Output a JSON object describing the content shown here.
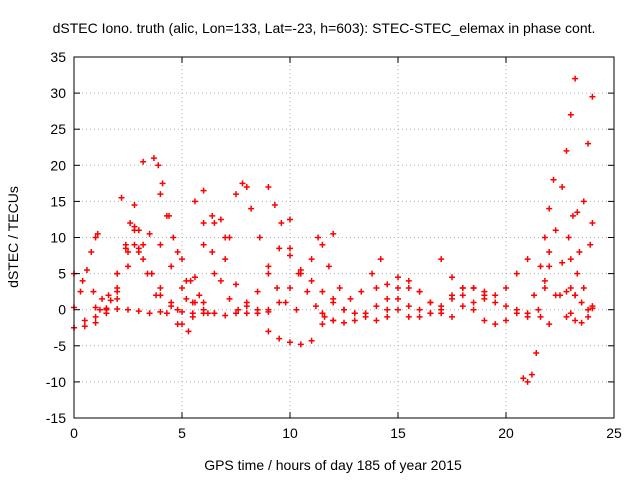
{
  "chart_data": {
    "type": "scatter",
    "title": "dSTEC Iono. truth (alic, Lon=133, Lat=-23, h=603): STEC-STEC_elemax in phase cont.",
    "xlabel": "GPS time / hours of day 185 of year 2015",
    "ylabel": "dSTEC  / TECUs",
    "xlim": [
      0,
      25
    ],
    "ylim": [
      -15,
      35
    ],
    "xticks": [
      0,
      5,
      10,
      15,
      20,
      25
    ],
    "yticks": [
      -15,
      -10,
      -5,
      0,
      5,
      10,
      15,
      20,
      25,
      30,
      35
    ],
    "grid": true,
    "marker": "+",
    "color": "#ff0000",
    "series": [
      {
        "x": [
          0.0,
          0.3,
          0.6,
          0.8,
          1.0,
          1.1
        ],
        "y": [
          0.3,
          2.5,
          5.5,
          8.0,
          10.0,
          10.5
        ]
      },
      {
        "x": [
          0.0,
          0.5,
          1.0,
          1.5,
          2.0,
          2.5,
          2.8
        ],
        "y": [
          -2.5,
          -2.3,
          -1.8,
          -0.5,
          3.0,
          8.0,
          11.5
        ]
      },
      {
        "x": [
          0.0,
          0.4,
          0.9,
          1.3,
          1.7,
          2.0
        ],
        "y": [
          5.0,
          4.0,
          2.5,
          1.5,
          1.3,
          1.5
        ]
      },
      {
        "x": [
          0.5,
          1.0,
          1.5,
          2.0,
          2.5,
          3.0
        ],
        "y": [
          -1.5,
          -1.0,
          0.0,
          2.5,
          6.0,
          11.0
        ]
      },
      {
        "x": [
          1.0,
          1.5,
          2.0,
          2.5,
          3.0,
          3.5,
          4.0
        ],
        "y": [
          0.3,
          0.2,
          0.1,
          0.0,
          -0.2,
          -0.5,
          -0.3
        ]
      },
      {
        "x": [
          1.2,
          1.6,
          2.0,
          2.4,
          2.8,
          3.2
        ],
        "y": [
          0.0,
          2.0,
          5.0,
          9.0,
          14.5,
          20.5
        ]
      },
      {
        "x": [
          2.0,
          2.4,
          2.8,
          3.2,
          3.6,
          4.0,
          4.5
        ],
        "y": [
          5.0,
          8.5,
          11.0,
          9.0,
          5.0,
          2.0,
          0.5
        ]
      },
      {
        "x": [
          2.2,
          2.6,
          3.0,
          3.4,
          3.8,
          4.3,
          4.8,
          5.3
        ],
        "y": [
          15.5,
          12.0,
          8.0,
          5.0,
          2.0,
          -0.5,
          -2.0,
          -3.0
        ]
      },
      {
        "x": [
          2.8,
          3.2,
          3.6,
          4.0,
          4.5,
          5.0,
          5.5,
          6.2
        ],
        "y": [
          9.0,
          7.0,
          5.0,
          3.0,
          1.0,
          -0.3,
          -0.5,
          -0.5
        ]
      },
      {
        "x": [
          3.0,
          3.5,
          4.0,
          4.5,
          5.0,
          5.5,
          6.0
        ],
        "y": [
          8.5,
          10.5,
          9.0,
          6.0,
          3.0,
          1.0,
          0.0
        ]
      },
      {
        "x": [
          3.7,
          3.9,
          4.1,
          4.4,
          4.8,
          5.2,
          5.6,
          6.0,
          6.5
        ],
        "y": [
          21.0,
          20.0,
          17.5,
          13.0,
          8.0,
          4.0,
          1.0,
          -0.5,
          -0.5
        ]
      },
      {
        "x": [
          4.0,
          4.3,
          4.6,
          5.0,
          5.4,
          5.8
        ],
        "y": [
          16.0,
          13.0,
          10.0,
          7.0,
          4.0,
          2.0
        ]
      },
      {
        "x": [
          4.8,
          5.2,
          5.6,
          6.0,
          6.4,
          6.8,
          7.2
        ],
        "y": [
          0.0,
          1.5,
          4.5,
          9.0,
          13.0,
          12.5,
          10.0
        ]
      },
      {
        "x": [
          5.6,
          6.0,
          6.4,
          6.8,
          7.2,
          7.6,
          8.0
        ],
        "y": [
          15.0,
          12.0,
          8.0,
          4.0,
          1.5,
          0.0,
          -0.5
        ]
      },
      {
        "x": [
          5.0,
          5.5,
          6.0,
          6.5,
          7.0,
          7.5,
          8.0
        ],
        "y": [
          -2.0,
          -1.0,
          1.0,
          5.0,
          10.0,
          16.0,
          17.0
        ]
      },
      {
        "x": [
          6.0,
          6.5,
          7.0,
          7.5,
          8.0,
          8.5,
          9.0
        ],
        "y": [
          16.5,
          12.0,
          7.0,
          3.5,
          1.0,
          0.0,
          -0.3
        ]
      },
      {
        "x": [
          6.5,
          7.0,
          7.5,
          8.0,
          8.5,
          9.0,
          9.5,
          10.0
        ],
        "y": [
          -0.5,
          -0.8,
          -0.5,
          0.5,
          2.5,
          5.0,
          8.5,
          12.5
        ]
      },
      {
        "x": [
          7.8,
          8.2,
          8.6,
          9.0,
          9.4,
          9.8,
          10.3
        ],
        "y": [
          17.5,
          14.0,
          10.0,
          6.0,
          3.0,
          1.0,
          0.0
        ]
      },
      {
        "x": [
          8.5,
          9.0,
          9.5,
          10.0,
          10.5,
          11.0,
          11.5,
          12.0
        ],
        "y": [
          -0.5,
          0.0,
          1.0,
          3.0,
          5.0,
          7.0,
          9.0,
          10.5
        ]
      },
      {
        "x": [
          9.0,
          9.3,
          9.6,
          10.0,
          10.4,
          10.8,
          11.2,
          11.6,
          12.0
        ],
        "y": [
          17.0,
          14.5,
          12.0,
          8.5,
          5.0,
          2.5,
          0.5,
          -1.0,
          -1.5
        ]
      },
      {
        "x": [
          9.0,
          9.5,
          10.0,
          10.5,
          11.0,
          11.5,
          12.0
        ],
        "y": [
          -3.0,
          -4.0,
          -4.5,
          -4.8,
          -4.3,
          -2.0,
          1.5
        ]
      },
      {
        "x": [
          10.0,
          10.5,
          11.0,
          11.5,
          12.0,
          12.5,
          13.0
        ],
        "y": [
          7.5,
          5.5,
          4.0,
          2.5,
          1.0,
          0.0,
          -0.5
        ]
      },
      {
        "x": [
          11.3,
          11.8,
          12.3,
          12.8,
          13.3,
          13.8,
          14.2
        ],
        "y": [
          10.0,
          6.0,
          3.0,
          1.5,
          2.5,
          5.0,
          7.0
        ]
      },
      {
        "x": [
          11.5,
          12.0,
          12.5,
          13.0,
          13.5,
          14.0,
          14.5,
          15.0
        ],
        "y": [
          -0.5,
          -1.5,
          -1.8,
          -1.5,
          -0.5,
          0.5,
          1.5,
          3.0
        ]
      },
      {
        "x": [
          12.5,
          13.0,
          13.5,
          14.0,
          14.5,
          15.0,
          15.5,
          16.0,
          16.5
        ],
        "y": [
          0.0,
          -0.5,
          -1.0,
          -1.5,
          -1.0,
          0.0,
          0.5,
          0.0,
          -0.5
        ]
      },
      {
        "x": [
          14.0,
          14.5,
          15.0,
          15.5,
          16.0,
          16.5,
          17.0
        ],
        "y": [
          3.0,
          3.5,
          4.5,
          4.0,
          2.5,
          1.0,
          0.0
        ]
      },
      {
        "x": [
          14.5,
          15.0,
          15.5,
          16.0,
          16.5,
          17.0,
          17.5
        ],
        "y": [
          0.0,
          1.5,
          3.0,
          2.5,
          1.0,
          -0.5,
          -1.0
        ]
      },
      {
        "x": [
          15.5,
          16.0,
          16.5,
          17.0,
          17.5,
          18.0,
          18.5,
          19.0
        ],
        "y": [
          -1.0,
          -1.0,
          -0.5,
          0.5,
          2.0,
          3.0,
          3.0,
          2.5
        ]
      },
      {
        "x": [
          17.0,
          17.5,
          18.0,
          18.5,
          19.0,
          19.5,
          20.0,
          20.5
        ],
        "y": [
          7.0,
          4.5,
          2.0,
          0.0,
          -1.5,
          -2.0,
          -1.5,
          -0.5
        ]
      },
      {
        "x": [
          17.5,
          18.0,
          18.5,
          19.0,
          19.5,
          20.0,
          20.5,
          21.0
        ],
        "y": [
          1.5,
          3.0,
          3.0,
          2.0,
          1.0,
          0.5,
          0.0,
          -0.5
        ]
      },
      {
        "x": [
          18.0,
          18.5,
          19.0,
          19.5,
          20.0,
          20.5,
          21.0
        ],
        "y": [
          0.5,
          1.0,
          1.5,
          2.0,
          3.0,
          5.0,
          7.0
        ]
      },
      {
        "x": [
          20.8,
          21.0,
          21.2,
          21.4,
          21.6,
          21.8,
          22.0
        ],
        "y": [
          -9.5,
          -10.0,
          -9.0,
          -6.0,
          -1.0,
          4.0,
          8.0
        ]
      },
      {
        "x": [
          21.0,
          21.3,
          21.6,
          21.8,
          22.0,
          22.2
        ],
        "y": [
          -1.0,
          2.0,
          6.0,
          10.0,
          14.0,
          18.0
        ]
      },
      {
        "x": [
          21.5,
          21.8,
          22.0,
          22.3,
          22.6,
          22.8,
          23.0,
          23.2
        ],
        "y": [
          0.0,
          3.0,
          6.0,
          11.0,
          17.0,
          22.0,
          27.0,
          32.0
        ]
      },
      {
        "x": [
          22.0,
          22.3,
          22.6,
          22.9,
          23.1,
          23.3
        ],
        "y": [
          -2.0,
          2.0,
          6.5,
          10.0,
          13.0,
          13.5
        ]
      },
      {
        "x": [
          22.5,
          22.8,
          23.0,
          23.2,
          23.5,
          23.8,
          24.0
        ],
        "y": [
          2.0,
          2.5,
          3.0,
          2.0,
          1.0,
          0.0,
          0.2
        ]
      },
      {
        "x": [
          22.8,
          23.0,
          23.2,
          23.4,
          23.6,
          23.8,
          24.0
        ],
        "y": [
          -1.0,
          -0.5,
          2.0,
          8.0,
          15.0,
          23.0,
          29.5
        ]
      },
      {
        "x": [
          23.0,
          23.3,
          23.6,
          23.9,
          24.0
        ],
        "y": [
          7.0,
          5.0,
          3.0,
          9.0,
          12.0
        ]
      },
      {
        "x": [
          23.2,
          23.5,
          23.8,
          24.0
        ],
        "y": [
          -1.5,
          -1.8,
          -1.0,
          0.5
        ]
      }
    ]
  }
}
